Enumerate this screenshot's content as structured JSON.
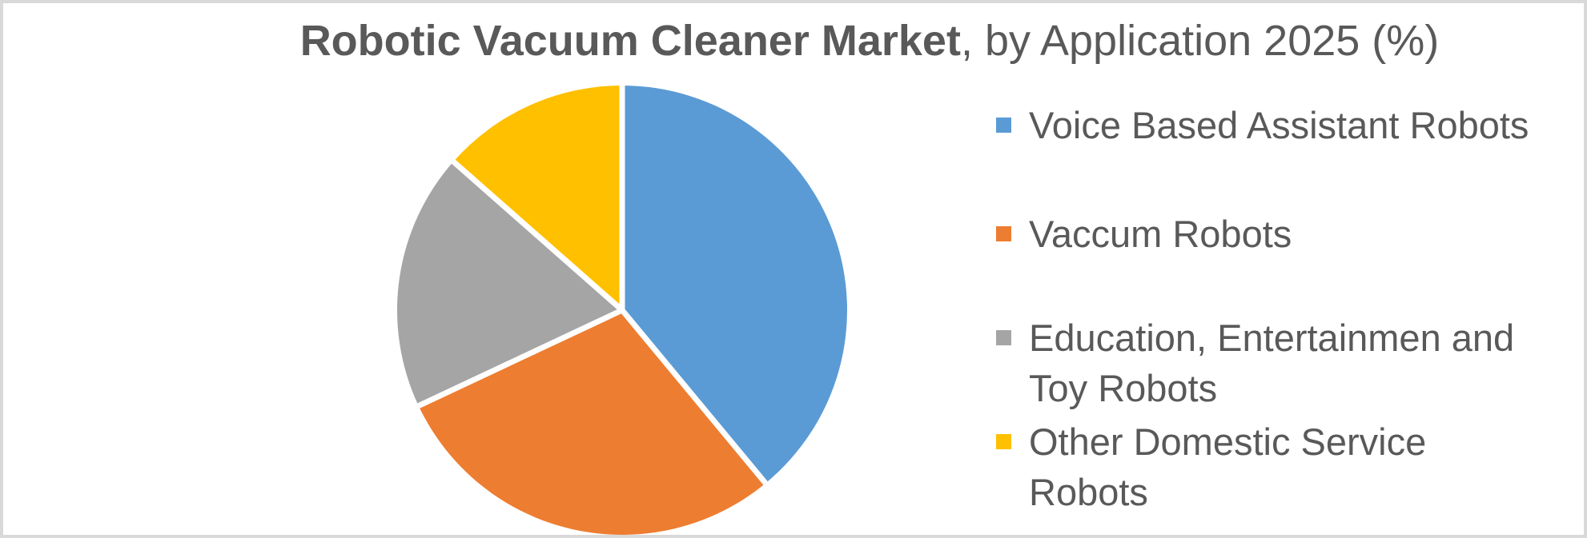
{
  "title": {
    "bold_text": "Robotic Vacuum Cleaner Market",
    "regular_text": ", by Application 2025 (%)"
  },
  "legend": {
    "items": [
      {
        "label_lines": [
          "Voice Based Assistant Robots"
        ],
        "color": "#5B9BD5"
      },
      {
        "label_lines": [
          "Vaccum Robots"
        ],
        "color": "#ED7D31"
      },
      {
        "label_lines": [
          "Education, Entertainmen and",
          "Toy Robots"
        ],
        "color": "#A5A5A5"
      },
      {
        "label_lines": [
          "Other Domestic Service",
          "Robots"
        ],
        "color": "#FFC000"
      }
    ]
  },
  "colors": {
    "background": "#FFFFFF",
    "frame_border": "#D9D9D9",
    "text": "#595959",
    "slice_separator": "#FFFFFF"
  },
  "chart_data": {
    "type": "pie",
    "title": "Robotic Vacuum Cleaner Market, by Application 2025 (%)",
    "categories": [
      "Voice Based Assistant Robots",
      "Vaccum Robots",
      "Education, Entertainmen and Toy Robots",
      "Other Domestic Service Robots"
    ],
    "values": [
      39,
      29,
      18.5,
      13.5
    ],
    "unit": "%",
    "colors": [
      "#5B9BD5",
      "#ED7D31",
      "#A5A5A5",
      "#FFC000"
    ],
    "start_angle_deg": 0,
    "direction": "clockwise",
    "legend_position": "right",
    "data_labels": false
  }
}
